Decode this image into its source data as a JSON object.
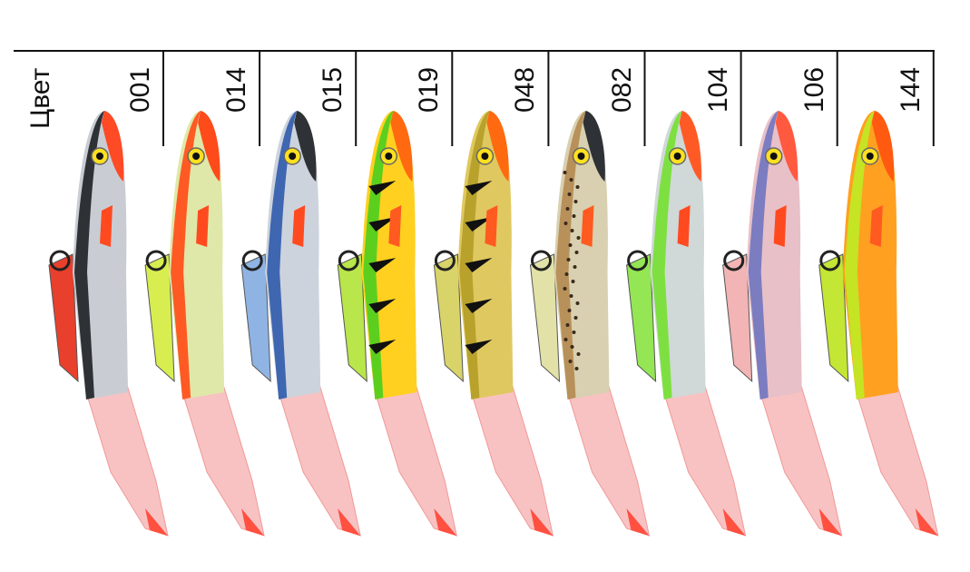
{
  "header_label": "Цвет",
  "colors": [
    {
      "code": "001",
      "back": "#2e3236",
      "body": "#c9cdd3",
      "head": "#ff4a26",
      "keel": "#e8402c",
      "fin": "#ff4a20",
      "stripes": false,
      "spots": false
    },
    {
      "code": "014",
      "back": "#ff5a24",
      "body": "#dfe8a8",
      "head": "#ff4a1a",
      "keel": "#d8ee50",
      "fin": "#ff4a20",
      "stripes": false,
      "spots": false
    },
    {
      "code": "015",
      "back": "#3f66b0",
      "body": "#cdd3dc",
      "head": "#2e3236",
      "keel": "#8fb4e4",
      "fin": "#ff4a20",
      "stripes": false,
      "spots": false
    },
    {
      "code": "019",
      "back": "#5ccf1e",
      "body": "#ffd020",
      "head": "#ff6a10",
      "keel": "#b9e64a",
      "fin": "#ff5a20",
      "stripes": true,
      "spots": false
    },
    {
      "code": "048",
      "back": "#b8a22c",
      "body": "#e0c860",
      "head": "#ff6a10",
      "keel": "#d9d46a",
      "fin": "#ff5a20",
      "stripes": true,
      "spots": false
    },
    {
      "code": "082",
      "back": "#b8905a",
      "body": "#d8d0b0",
      "head": "#2e3236",
      "keel": "#e2e2a8",
      "fin": "#ff5a20",
      "stripes": false,
      "spots": true
    },
    {
      "code": "104",
      "back": "#7ee040",
      "body": "#d0d8d8",
      "head": "#ff5a26",
      "keel": "#94e654",
      "fin": "#ff4a20",
      "stripes": false,
      "spots": false
    },
    {
      "code": "106",
      "back": "#7c7cc0",
      "body": "#e8c0c8",
      "head": "#ff5a40",
      "keel": "#f2b4b4",
      "fin": "#ff4a20",
      "stripes": false,
      "spots": false
    },
    {
      "code": "144",
      "back": "#c4e424",
      "body": "#ffa020",
      "head": "#ff5a10",
      "keel": "#c4e634",
      "fin": "#ff5a20",
      "stripes": false,
      "spots": false
    }
  ],
  "tail_color": "#f7b8b8",
  "line_color": "#111111"
}
